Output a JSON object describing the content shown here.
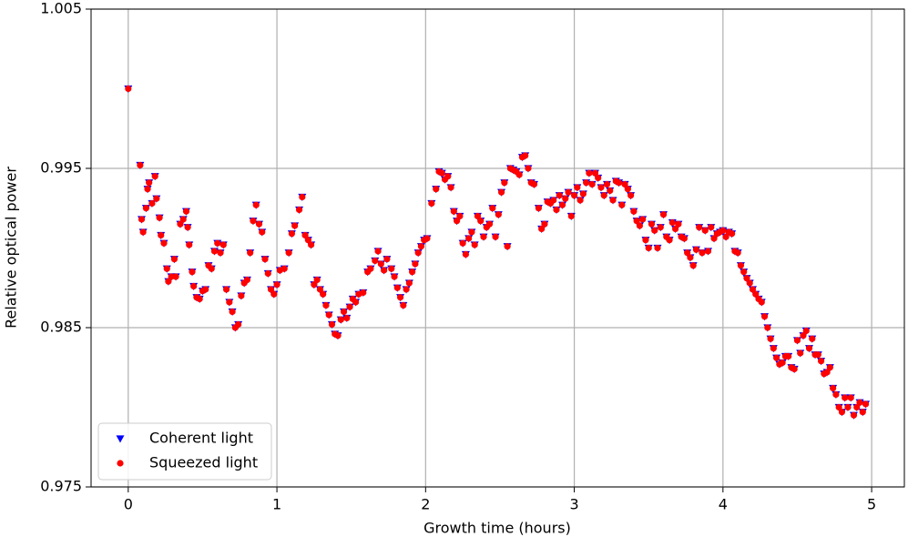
{
  "chart_data": {
    "type": "scatter",
    "xlabel": "Growth time (hours)",
    "ylabel": "Relative optical power",
    "x": [
      0,
      0.08,
      0.09,
      0.1,
      0.12,
      0.13,
      0.14,
      0.16,
      0.18,
      0.19,
      0.21,
      0.22,
      0.24,
      0.26,
      0.27,
      0.29,
      0.31,
      0.32,
      0.35,
      0.37,
      0.39,
      0.4,
      0.41,
      0.43,
      0.44,
      0.46,
      0.48,
      0.5,
      0.52,
      0.54,
      0.56,
      0.58,
      0.6,
      0.62,
      0.64,
      0.66,
      0.68,
      0.7,
      0.72,
      0.74,
      0.76,
      0.78,
      0.8,
      0.82,
      0.84,
      0.86,
      0.88,
      0.9,
      0.92,
      0.94,
      0.96,
      0.98,
      1.0,
      1.02,
      1.05,
      1.08,
      1.1,
      1.12,
      1.15,
      1.17,
      1.19,
      1.21,
      1.23,
      1.25,
      1.27,
      1.29,
      1.31,
      1.33,
      1.35,
      1.37,
      1.39,
      1.41,
      1.43,
      1.45,
      1.47,
      1.49,
      1.51,
      1.53,
      1.55,
      1.58,
      1.61,
      1.63,
      1.66,
      1.68,
      1.7,
      1.72,
      1.74,
      1.77,
      1.79,
      1.81,
      1.83,
      1.85,
      1.87,
      1.89,
      1.91,
      1.93,
      1.95,
      1.97,
      1.99,
      2.01,
      2.04,
      2.07,
      2.09,
      2.11,
      2.13,
      2.15,
      2.17,
      2.19,
      2.21,
      2.23,
      2.25,
      2.27,
      2.29,
      2.31,
      2.33,
      2.35,
      2.37,
      2.39,
      2.41,
      2.43,
      2.45,
      2.47,
      2.49,
      2.51,
      2.53,
      2.55,
      2.57,
      2.59,
      2.61,
      2.63,
      2.65,
      2.67,
      2.69,
      2.71,
      2.73,
      2.76,
      2.78,
      2.8,
      2.82,
      2.84,
      2.86,
      2.88,
      2.9,
      2.92,
      2.94,
      2.96,
      2.98,
      3.0,
      3.02,
      3.04,
      3.06,
      3.08,
      3.1,
      3.12,
      3.14,
      3.16,
      3.18,
      3.2,
      3.22,
      3.24,
      3.26,
      3.28,
      3.3,
      3.32,
      3.34,
      3.36,
      3.38,
      3.4,
      3.42,
      3.44,
      3.46,
      3.48,
      3.5,
      3.52,
      3.54,
      3.56,
      3.58,
      3.6,
      3.62,
      3.64,
      3.66,
      3.68,
      3.7,
      3.72,
      3.74,
      3.76,
      3.78,
      3.8,
      3.82,
      3.84,
      3.86,
      3.88,
      3.9,
      3.92,
      3.94,
      3.96,
      3.98,
      4.0,
      4.02,
      4.04,
      4.06,
      4.08,
      4.1,
      4.12,
      4.14,
      4.16,
      4.18,
      4.2,
      4.22,
      4.24,
      4.26,
      4.28,
      4.3,
      4.32,
      4.34,
      4.36,
      4.38,
      4.4,
      4.42,
      4.44,
      4.46,
      4.48,
      4.5,
      4.52,
      4.54,
      4.56,
      4.58,
      4.6,
      4.62,
      4.64,
      4.66,
      4.68,
      4.7,
      4.72,
      4.74,
      4.76,
      4.78,
      4.8,
      4.82,
      4.84,
      4.86,
      4.88,
      4.9,
      4.92,
      4.94,
      4.96
    ],
    "series": [
      {
        "name": "Coherent light",
        "color": "#0000ff",
        "marker": "triangle-down",
        "values": [
          1.0,
          0.9952,
          0.9918,
          0.991,
          0.9925,
          0.9937,
          0.9941,
          0.9928,
          0.9945,
          0.9931,
          0.9919,
          0.9908,
          0.9903,
          0.9887,
          0.9879,
          0.9882,
          0.9893,
          0.9882,
          0.9915,
          0.9918,
          0.9923,
          0.9913,
          0.9902,
          0.9885,
          0.9876,
          0.9869,
          0.9868,
          0.9873,
          0.9874,
          0.9889,
          0.9887,
          0.9898,
          0.9903,
          0.9897,
          0.9902,
          0.9874,
          0.9866,
          0.986,
          0.985,
          0.9852,
          0.987,
          0.9878,
          0.988,
          0.9897,
          0.9917,
          0.9927,
          0.9915,
          0.991,
          0.9893,
          0.9884,
          0.9874,
          0.9871,
          0.9877,
          0.9886,
          0.9887,
          0.9897,
          0.9909,
          0.9914,
          0.9924,
          0.9932,
          0.9908,
          0.9905,
          0.9902,
          0.9877,
          0.988,
          0.9874,
          0.9871,
          0.9864,
          0.9858,
          0.9852,
          0.9846,
          0.9845,
          0.9855,
          0.986,
          0.9856,
          0.9863,
          0.9868,
          0.9866,
          0.9871,
          0.9872,
          0.9885,
          0.9887,
          0.9892,
          0.9898,
          0.989,
          0.9886,
          0.9893,
          0.9887,
          0.9882,
          0.9875,
          0.9869,
          0.9864,
          0.9874,
          0.9878,
          0.9885,
          0.989,
          0.9897,
          0.9901,
          0.9905,
          0.9906,
          0.9928,
          0.9937,
          0.9948,
          0.9947,
          0.9943,
          0.9945,
          0.9938,
          0.9923,
          0.9917,
          0.992,
          0.9903,
          0.9896,
          0.9906,
          0.991,
          0.9902,
          0.992,
          0.9917,
          0.9907,
          0.9913,
          0.9915,
          0.9925,
          0.9907,
          0.9921,
          0.9935,
          0.9941,
          0.9901,
          0.995,
          0.9949,
          0.9948,
          0.9946,
          0.9957,
          0.9958,
          0.995,
          0.9941,
          0.994,
          0.9925,
          0.9912,
          0.9915,
          0.9929,
          0.9928,
          0.993,
          0.9924,
          0.9933,
          0.9927,
          0.9931,
          0.9935,
          0.992,
          0.9933,
          0.9938,
          0.993,
          0.9934,
          0.9941,
          0.9947,
          0.994,
          0.9947,
          0.9944,
          0.9938,
          0.9933,
          0.994,
          0.9936,
          0.993,
          0.9942,
          0.9941,
          0.9927,
          0.994,
          0.9937,
          0.9933,
          0.9923,
          0.9917,
          0.9914,
          0.9918,
          0.9905,
          0.99,
          0.9915,
          0.9911,
          0.99,
          0.9913,
          0.9921,
          0.9907,
          0.9905,
          0.9916,
          0.9912,
          0.9915,
          0.9907,
          0.9906,
          0.9897,
          0.9894,
          0.9889,
          0.9899,
          0.9913,
          0.9897,
          0.9911,
          0.9898,
          0.9913,
          0.9906,
          0.9909,
          0.991,
          0.9911,
          0.9907,
          0.991,
          0.9909,
          0.9898,
          0.9897,
          0.9889,
          0.9885,
          0.9881,
          0.9878,
          0.9874,
          0.9871,
          0.9868,
          0.9866,
          0.9857,
          0.985,
          0.9843,
          0.9837,
          0.9831,
          0.9827,
          0.9828,
          0.9832,
          0.9832,
          0.9825,
          0.9824,
          0.9842,
          0.9834,
          0.9845,
          0.9848,
          0.9837,
          0.9843,
          0.9833,
          0.9833,
          0.9829,
          0.9821,
          0.9822,
          0.9825,
          0.9812,
          0.9808,
          0.98,
          0.9797,
          0.9806,
          0.98,
          0.9806,
          0.9795,
          0.98,
          0.9803,
          0.9797,
          0.9802
        ]
      },
      {
        "name": "Squeezed light",
        "color": "#ff0000",
        "marker": "circle",
        "values": [
          1.0,
          0.9952,
          0.9918,
          0.991,
          0.9925,
          0.9937,
          0.9941,
          0.9928,
          0.9945,
          0.9931,
          0.9919,
          0.9908,
          0.9903,
          0.9887,
          0.9879,
          0.9882,
          0.9893,
          0.9882,
          0.9915,
          0.9918,
          0.9923,
          0.9913,
          0.9902,
          0.9885,
          0.9876,
          0.9869,
          0.9868,
          0.9873,
          0.9874,
          0.9889,
          0.9887,
          0.9898,
          0.9903,
          0.9897,
          0.9902,
          0.9874,
          0.9866,
          0.986,
          0.985,
          0.9852,
          0.987,
          0.9878,
          0.988,
          0.9897,
          0.9917,
          0.9927,
          0.9915,
          0.991,
          0.9893,
          0.9884,
          0.9874,
          0.9871,
          0.9877,
          0.9886,
          0.9887,
          0.9897,
          0.9909,
          0.9914,
          0.9924,
          0.9932,
          0.9908,
          0.9905,
          0.9902,
          0.9877,
          0.988,
          0.9874,
          0.9871,
          0.9864,
          0.9858,
          0.9852,
          0.9846,
          0.9845,
          0.9855,
          0.986,
          0.9856,
          0.9863,
          0.9868,
          0.9866,
          0.9871,
          0.9872,
          0.9885,
          0.9887,
          0.9892,
          0.9898,
          0.989,
          0.9886,
          0.9893,
          0.9887,
          0.9882,
          0.9875,
          0.9869,
          0.9864,
          0.9874,
          0.9878,
          0.9885,
          0.989,
          0.9897,
          0.9901,
          0.9905,
          0.9906,
          0.9928,
          0.9937,
          0.9948,
          0.9947,
          0.9943,
          0.9945,
          0.9938,
          0.9923,
          0.9917,
          0.992,
          0.9903,
          0.9896,
          0.9906,
          0.991,
          0.9902,
          0.992,
          0.9917,
          0.9907,
          0.9913,
          0.9915,
          0.9925,
          0.9907,
          0.9921,
          0.9935,
          0.9941,
          0.9901,
          0.995,
          0.9949,
          0.9948,
          0.9946,
          0.9957,
          0.9958,
          0.995,
          0.9941,
          0.994,
          0.9925,
          0.9912,
          0.9915,
          0.9929,
          0.9928,
          0.993,
          0.9924,
          0.9933,
          0.9927,
          0.9931,
          0.9935,
          0.992,
          0.9933,
          0.9938,
          0.993,
          0.9934,
          0.9941,
          0.9947,
          0.994,
          0.9947,
          0.9944,
          0.9938,
          0.9933,
          0.994,
          0.9936,
          0.993,
          0.9942,
          0.9941,
          0.9927,
          0.994,
          0.9937,
          0.9933,
          0.9923,
          0.9917,
          0.9914,
          0.9918,
          0.9905,
          0.99,
          0.9915,
          0.9911,
          0.99,
          0.9913,
          0.9921,
          0.9907,
          0.9905,
          0.9916,
          0.9912,
          0.9915,
          0.9907,
          0.9906,
          0.9897,
          0.9894,
          0.9889,
          0.9899,
          0.9913,
          0.9897,
          0.9911,
          0.9898,
          0.9913,
          0.9906,
          0.9909,
          0.991,
          0.9911,
          0.9907,
          0.991,
          0.9909,
          0.9898,
          0.9897,
          0.9889,
          0.9885,
          0.9881,
          0.9878,
          0.9874,
          0.9871,
          0.9868,
          0.9866,
          0.9857,
          0.985,
          0.9843,
          0.9837,
          0.9831,
          0.9827,
          0.9828,
          0.9832,
          0.9832,
          0.9825,
          0.9824,
          0.9842,
          0.9834,
          0.9845,
          0.9848,
          0.9837,
          0.9843,
          0.9833,
          0.9833,
          0.9829,
          0.9821,
          0.9822,
          0.9825,
          0.9812,
          0.9808,
          0.98,
          0.9797,
          0.9806,
          0.98,
          0.9806,
          0.9795,
          0.98,
          0.9803,
          0.9797,
          0.9802
        ]
      }
    ],
    "xlim": [
      -0.25,
      5.22
    ],
    "xticks": [
      0,
      1,
      2,
      3,
      4,
      5
    ],
    "ylim": [
      0.975,
      1.005
    ],
    "yticks": [
      0.975,
      0.985,
      0.995,
      1.005
    ],
    "grid": true,
    "legend": "lower left"
  }
}
